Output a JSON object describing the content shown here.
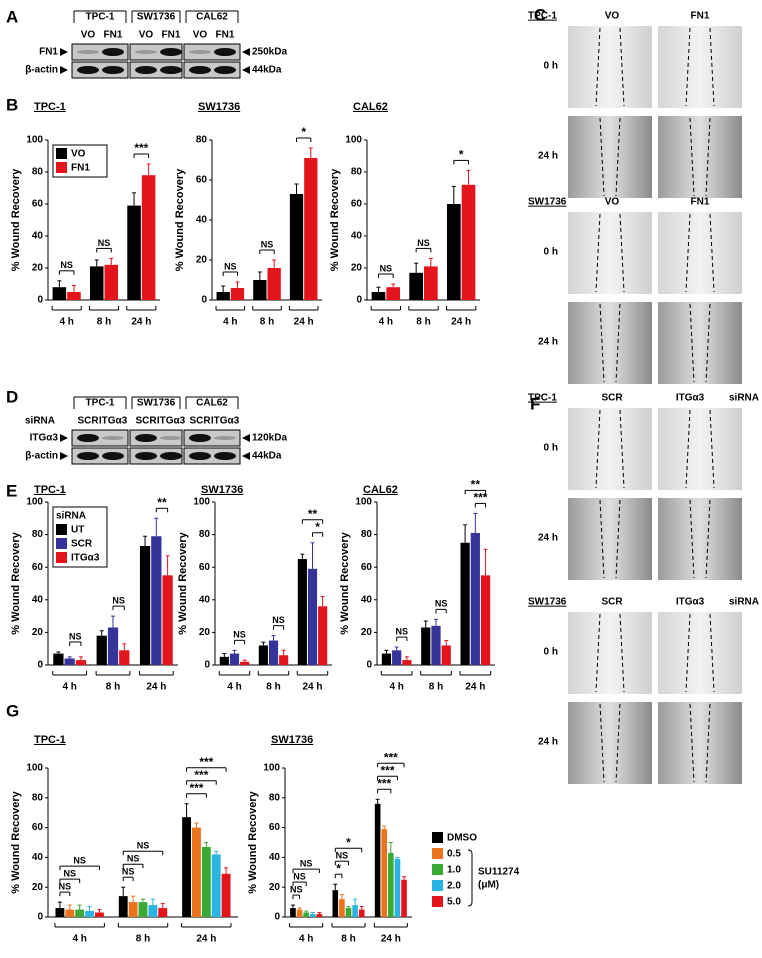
{
  "letters": [
    "A",
    "B",
    "C",
    "D",
    "E",
    "F",
    "G"
  ],
  "blot_a": {
    "groups": [
      "TPC-1",
      "SW1736",
      "CAL62"
    ],
    "lanes": [
      "VO",
      "FN1"
    ],
    "rows": [
      "FN1",
      "β-actin"
    ],
    "sizes": [
      "250kDa",
      "44kDa"
    ]
  },
  "blot_d": {
    "label": "siRNA",
    "groups": [
      "TPC-1",
      "SW1736",
      "CAL62"
    ],
    "lanes": [
      "SCR",
      "ITGα3"
    ],
    "rows": [
      "ITGα3",
      "β-actin"
    ],
    "sizes": [
      "120kDa",
      "44kDa"
    ]
  },
  "images_c": [
    {
      "cell": "TPC-1",
      "columns": [
        "VO",
        "FN1"
      ],
      "rows": [
        "0 h",
        "24 h"
      ]
    },
    {
      "cell": "SW1736",
      "columns": [
        "VO",
        "FN1"
      ],
      "rows": [
        "0 h",
        "24 h"
      ]
    }
  ],
  "images_f": [
    {
      "cell": "TPC-1",
      "columns": [
        "SCR",
        "ITGα3",
        "siRNA"
      ],
      "rows": [
        "0 h",
        "24 h"
      ]
    },
    {
      "cell": "SW1736",
      "columns": [
        "SCR",
        "ITGα3",
        "siRNA"
      ],
      "rows": [
        "0 h",
        "24 h"
      ]
    }
  ],
  "chart_data": [
    {
      "type": "bar",
      "title": "TPC-1",
      "y_label": "% Wound Recovery",
      "categories": [
        "4 h",
        "8 h",
        "24 h"
      ],
      "ylim": [
        0,
        100
      ],
      "yticks": [
        0,
        20,
        40,
        60,
        80,
        100
      ],
      "legend": "upper left",
      "series": [
        {
          "name": "VO",
          "color": "#000000",
          "values": [
            8,
            21,
            59
          ],
          "errors": [
            4,
            4,
            8
          ]
        },
        {
          "name": "FN1",
          "color": "#e3141c",
          "values": [
            5,
            22,
            78
          ],
          "errors": [
            4,
            4,
            7
          ]
        }
      ],
      "annotations": [
        {
          "text": "NS",
          "category": 0,
          "from": 0,
          "to": 1
        },
        {
          "text": "NS",
          "category": 1,
          "from": 0,
          "to": 1
        },
        {
          "text": "***",
          "category": 2,
          "from": 0,
          "to": 1
        }
      ]
    },
    {
      "type": "bar",
      "title": "SW1736",
      "y_label": "% Wound Recovery",
      "categories": [
        "4 h",
        "8 h",
        "24 h"
      ],
      "ylim": [
        0,
        80
      ],
      "yticks": [
        0,
        20,
        40,
        60,
        80
      ],
      "series": [
        {
          "name": "VO",
          "color": "#000000",
          "values": [
            4,
            10,
            53
          ],
          "errors": [
            3,
            4,
            5
          ]
        },
        {
          "name": "FN1",
          "color": "#e3141c",
          "values": [
            6,
            16,
            71
          ],
          "errors": [
            3,
            4,
            5
          ]
        }
      ],
      "annotations": [
        {
          "text": "NS",
          "category": 0,
          "from": 0,
          "to": 1
        },
        {
          "text": "NS",
          "category": 1,
          "from": 0,
          "to": 1
        },
        {
          "text": "*",
          "category": 2,
          "from": 0,
          "to": 1
        }
      ]
    },
    {
      "type": "bar",
      "title": "CAL62",
      "y_label": "% Wound Recovery",
      "categories": [
        "4 h",
        "8 h",
        "24 h"
      ],
      "ylim": [
        0,
        100
      ],
      "yticks": [
        0,
        20,
        40,
        60,
        80,
        100
      ],
      "series": [
        {
          "name": "VO",
          "color": "#000000",
          "values": [
            5,
            17,
            60
          ],
          "errors": [
            3,
            6,
            11
          ]
        },
        {
          "name": "FN1",
          "color": "#e3141c",
          "values": [
            8,
            21,
            72
          ],
          "errors": [
            2,
            5,
            9
          ]
        }
      ],
      "annotations": [
        {
          "text": "NS",
          "category": 0,
          "from": 0,
          "to": 1
        },
        {
          "text": "NS",
          "category": 1,
          "from": 0,
          "to": 1
        },
        {
          "text": "*",
          "category": 2,
          "from": 0,
          "to": 1
        }
      ]
    },
    {
      "type": "bar",
      "title": "TPC-1",
      "y_label": "% Wound Recovery",
      "categories": [
        "4 h",
        "8 h",
        "24 h"
      ],
      "ylim": [
        0,
        100
      ],
      "yticks": [
        0,
        20,
        40,
        60,
        80,
        100
      ],
      "legend": "upper left",
      "legend_title": "siRNA",
      "series": [
        {
          "name": "UT",
          "color": "#000000",
          "values": [
            7,
            18,
            73
          ],
          "errors": [
            1,
            3,
            6
          ]
        },
        {
          "name": "SCR",
          "color": "#34349a",
          "values": [
            4,
            23,
            79
          ],
          "errors": [
            1,
            7,
            11
          ]
        },
        {
          "name": "ITGα3",
          "color": "#e3141c",
          "values": [
            3,
            9,
            55
          ],
          "errors": [
            2,
            4,
            12
          ]
        }
      ],
      "annotations": [
        {
          "text": "NS",
          "category": 0,
          "from": 1,
          "to": 2
        },
        {
          "text": "NS",
          "category": 1,
          "from": 1,
          "to": 2
        },
        {
          "text": "**",
          "category": 2,
          "from": 1,
          "to": 2
        }
      ]
    },
    {
      "type": "bar",
      "title": "SW1736",
      "y_label": "% Wound Recovery",
      "categories": [
        "4 h",
        "8 h",
        "24 h"
      ],
      "ylim": [
        0,
        100
      ],
      "yticks": [
        0,
        20,
        40,
        60,
        80,
        100
      ],
      "series": [
        {
          "name": "UT",
          "color": "#000000",
          "values": [
            5,
            12,
            65
          ],
          "errors": [
            2,
            2,
            3
          ]
        },
        {
          "name": "SCR",
          "color": "#34349a",
          "values": [
            7,
            15,
            59
          ],
          "errors": [
            2,
            3,
            16
          ]
        },
        {
          "name": "ITGα3",
          "color": "#e3141c",
          "values": [
            2,
            6,
            36
          ],
          "errors": [
            1,
            3,
            6
          ]
        }
      ],
      "annotations": [
        {
          "text": "NS",
          "category": 0,
          "from": 1,
          "to": 2
        },
        {
          "text": "NS",
          "category": 1,
          "from": 1,
          "to": 2
        },
        {
          "text": "*",
          "category": 2,
          "from": 1,
          "to": 2
        },
        {
          "text": "**",
          "category": 2,
          "from": 0,
          "to": 2
        }
      ]
    },
    {
      "type": "bar",
      "title": "CAL62",
      "y_label": "% Wound Recovery",
      "categories": [
        "4 h",
        "8 h",
        "24 h"
      ],
      "ylim": [
        0,
        100
      ],
      "yticks": [
        0,
        20,
        40,
        60,
        80,
        100
      ],
      "series": [
        {
          "name": "UT",
          "color": "#000000",
          "values": [
            7,
            23,
            75
          ],
          "errors": [
            2,
            4,
            11
          ]
        },
        {
          "name": "SCR",
          "color": "#34349a",
          "values": [
            9,
            24,
            81
          ],
          "errors": [
            2,
            4,
            12
          ]
        },
        {
          "name": "ITGα3",
          "color": "#e3141c",
          "values": [
            3,
            12,
            55
          ],
          "errors": [
            2,
            3,
            16
          ]
        }
      ],
      "annotations": [
        {
          "text": "NS",
          "category": 0,
          "from": 1,
          "to": 2
        },
        {
          "text": "NS",
          "category": 1,
          "from": 1,
          "to": 2
        },
        {
          "text": "***",
          "category": 2,
          "from": 1,
          "to": 2
        },
        {
          "text": "**",
          "category": 2,
          "from": 0,
          "to": 2
        }
      ]
    },
    {
      "type": "bar",
      "title": "TPC-1",
      "y_label": "% Wound Recovery",
      "categories": [
        "4 h",
        "8 h",
        "24 h"
      ],
      "ylim": [
        0,
        100
      ],
      "yticks": [
        0,
        20,
        40,
        60,
        80,
        100
      ],
      "series": [
        {
          "name": "DMSO",
          "color": "#000000",
          "values": [
            6,
            14,
            67
          ],
          "errors": [
            4,
            6,
            9
          ]
        },
        {
          "name": "0.5",
          "color": "#ea741c",
          "values": [
            5,
            10,
            60
          ],
          "errors": [
            3,
            4,
            3
          ]
        },
        {
          "name": "1.0",
          "color": "#3aa935",
          "values": [
            5,
            10,
            47
          ],
          "errors": [
            3,
            2,
            3
          ]
        },
        {
          "name": "2.0",
          "color": "#2ab4e2",
          "values": [
            4,
            8,
            42
          ],
          "errors": [
            3,
            4,
            2
          ]
        },
        {
          "name": "5.0",
          "color": "#e3141c",
          "values": [
            3,
            6,
            29
          ],
          "errors": [
            2,
            3,
            4
          ]
        }
      ],
      "annotations": [
        {
          "text": "NS",
          "category": 0,
          "from": 0,
          "to": 1
        },
        {
          "text": "NS",
          "category": 0,
          "from": 0,
          "to": 2
        },
        {
          "text": "NS",
          "category": 0,
          "from": 0,
          "to": 4
        },
        {
          "text": "NS",
          "category": 1,
          "from": 0,
          "to": 1
        },
        {
          "text": "NS",
          "category": 1,
          "from": 0,
          "to": 2
        },
        {
          "text": "NS",
          "category": 1,
          "from": 0,
          "to": 4
        },
        {
          "text": "***",
          "category": 2,
          "from": 0,
          "to": 2
        },
        {
          "text": "***",
          "category": 2,
          "from": 0,
          "to": 3
        },
        {
          "text": "***",
          "category": 2,
          "from": 0,
          "to": 4
        }
      ]
    },
    {
      "type": "bar",
      "title": "SW1736",
      "y_label": "% Wound Recovery",
      "categories": [
        "4 h",
        "8 h",
        "24 h"
      ],
      "ylim": [
        0,
        100
      ],
      "yticks": [
        0,
        20,
        40,
        60,
        80,
        100
      ],
      "legend": "right",
      "legend_note": [
        "SU11274",
        "(μM)"
      ],
      "series": [
        {
          "name": "DMSO",
          "color": "#000000",
          "values": [
            6,
            18,
            76
          ],
          "errors": [
            2,
            4,
            3
          ]
        },
        {
          "name": "0.5",
          "color": "#ea741c",
          "values": [
            5,
            12,
            59
          ],
          "errors": [
            1,
            3,
            2
          ]
        },
        {
          "name": "1.0",
          "color": "#3aa935",
          "values": [
            3,
            6,
            43
          ],
          "errors": [
            1,
            1,
            7
          ]
        },
        {
          "name": "2.0",
          "color": "#2ab4e2",
          "values": [
            2,
            8,
            39
          ],
          "errors": [
            1,
            4,
            1
          ]
        },
        {
          "name": "5.0",
          "color": "#e3141c",
          "values": [
            2,
            5,
            25
          ],
          "errors": [
            1,
            2,
            2
          ]
        }
      ],
      "annotations": [
        {
          "text": "NS",
          "category": 0,
          "from": 0,
          "to": 1
        },
        {
          "text": "NS",
          "category": 0,
          "from": 0,
          "to": 2
        },
        {
          "text": "NS",
          "category": 0,
          "from": 0,
          "to": 4
        },
        {
          "text": "*",
          "category": 1,
          "from": 0,
          "to": 1
        },
        {
          "text": "NS",
          "category": 1,
          "from": 0,
          "to": 2
        },
        {
          "text": "*",
          "category": 1,
          "from": 0,
          "to": 4
        },
        {
          "text": "***",
          "category": 2,
          "from": 0,
          "to": 2
        },
        {
          "text": "***",
          "category": 2,
          "from": 0,
          "to": 3
        },
        {
          "text": "***",
          "category": 2,
          "from": 0,
          "to": 4
        }
      ]
    }
  ]
}
